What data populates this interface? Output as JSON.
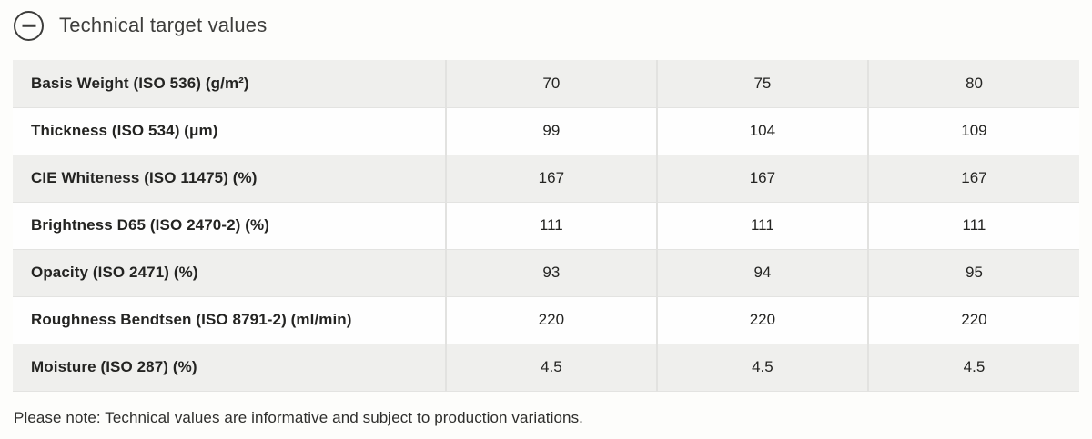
{
  "header": {
    "title": "Technical target values",
    "collapse_icon": "minus-circle-icon"
  },
  "table": {
    "rows": [
      {
        "label": "Basis Weight (ISO 536) (g/m²)",
        "values": [
          "70",
          "75",
          "80"
        ]
      },
      {
        "label": "Thickness (ISO 534) (μm)",
        "values": [
          "99",
          "104",
          "109"
        ]
      },
      {
        "label": "CIE Whiteness (ISO 11475) (%)",
        "values": [
          "167",
          "167",
          "167"
        ]
      },
      {
        "label": "Brightness D65 (ISO 2470-2) (%)",
        "values": [
          "111",
          "111",
          "111"
        ]
      },
      {
        "label": "Opacity (ISO 2471) (%)",
        "values": [
          "93",
          "94",
          "95"
        ]
      },
      {
        "label": "Roughness Bendtsen (ISO 8791-2) (ml/min)",
        "values": [
          "220",
          "220",
          "220"
        ]
      },
      {
        "label": "Moisture (ISO 287) (%)",
        "values": [
          "4.5",
          "4.5",
          "4.5"
        ]
      }
    ]
  },
  "footer": {
    "note": "Please note: Technical values are informative and subject to production variations."
  },
  "colors": {
    "row_alt_bg": "#efefed",
    "row_bg": "#fefefe",
    "border": "#e2e2e0",
    "title_text": "#3e3e3c",
    "label_text": "#1d1d1b"
  }
}
